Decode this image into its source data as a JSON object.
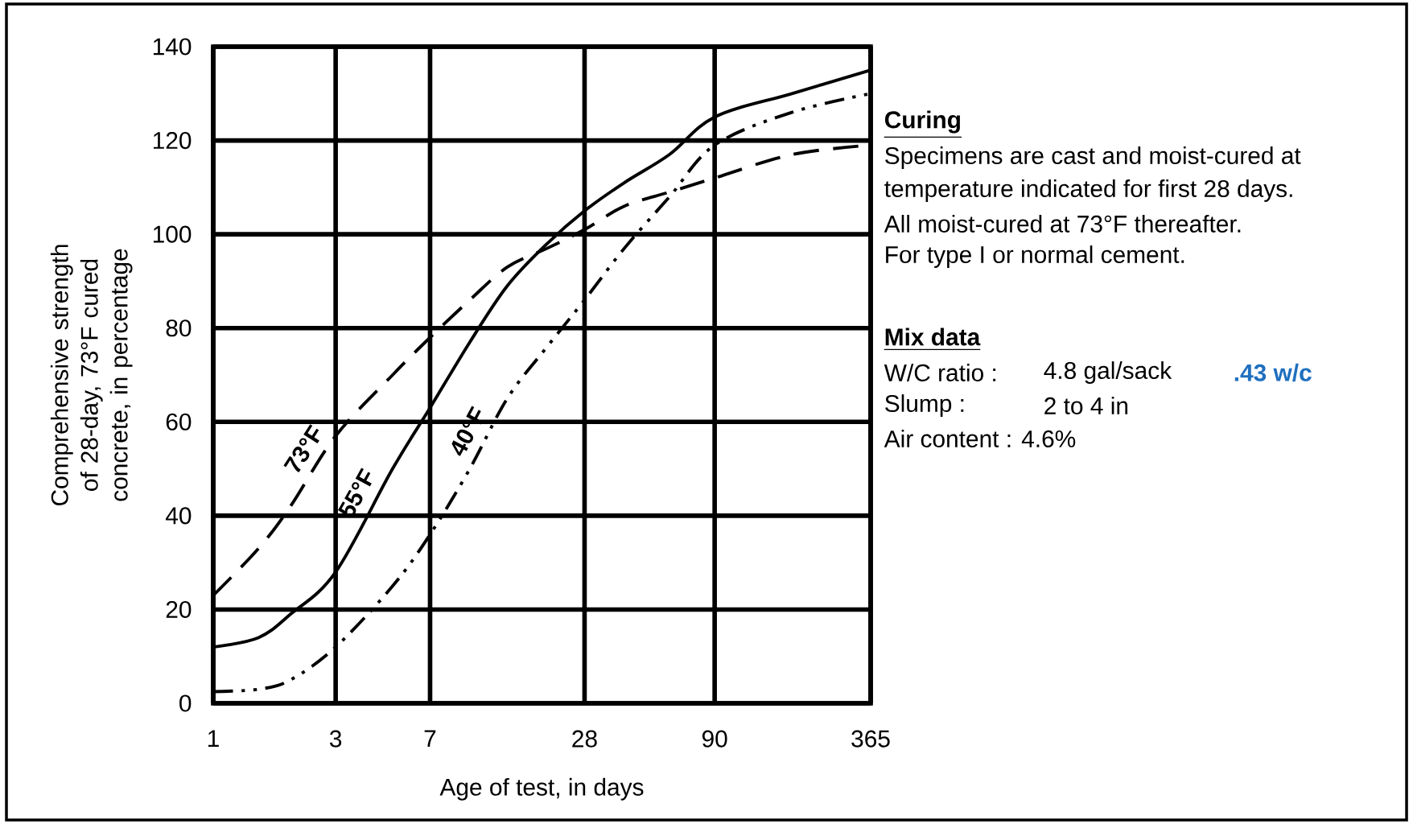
{
  "chart_data": {
    "type": "line",
    "xlabel": "Age of test, in days",
    "ylabel": "Comprehensive strength of 28-day, 73°F cured concrete, in percentage",
    "x": [
      1,
      1.5,
      2,
      3,
      5,
      7,
      10,
      14,
      20,
      28,
      40,
      60,
      90,
      180,
      365
    ],
    "series": [
      {
        "name": "73°F",
        "color": "#000000",
        "line_style": "dashed",
        "values": [
          23,
          33,
          42,
          57,
          70,
          78,
          86,
          93,
          97,
          101,
          106,
          109,
          112,
          117,
          119
        ]
      },
      {
        "name": "55°F",
        "color": "#000000",
        "line_style": "solid",
        "values": [
          12,
          14,
          19,
          28,
          50,
          63,
          77,
          89,
          98,
          105,
          111,
          117,
          125,
          130,
          135
        ]
      },
      {
        "name": "40°F",
        "color": "#000000",
        "line_style": "dashdot",
        "values": [
          2.5,
          3,
          5,
          12,
          25,
          36,
          50,
          65,
          76,
          86,
          97,
          108,
          119,
          126,
          130
        ]
      }
    ],
    "log": "x",
    "xlim": [
      1,
      365
    ],
    "xticks": [
      1,
      3,
      7,
      28,
      90,
      365
    ],
    "ylim": [
      0,
      140
    ],
    "yticks": [
      0,
      20,
      40,
      60,
      80,
      100,
      120,
      140
    ],
    "grid": true,
    "marker": "none",
    "annotations": [
      "Curing",
      "Specimens are cast and moist-cured at",
      "temperature indicated for first 28 days.",
      "All moist-cured at 73°F thereafter.",
      "For type I or normal cement.",
      "Mix data",
      "W/C ratio :",
      "4.8 gal/sack",
      ".43 w/c",
      "Slump :",
      "2 to 4 in",
      "Air content : 4.6%"
    ]
  }
}
